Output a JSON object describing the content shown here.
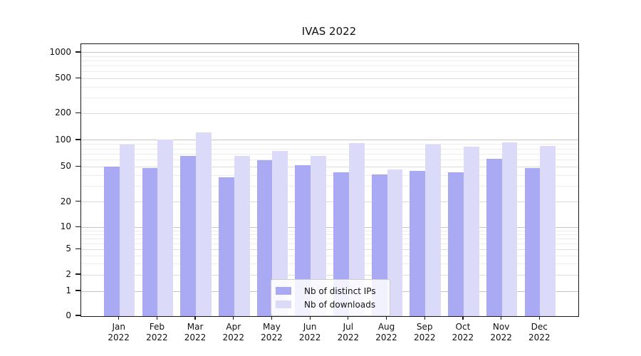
{
  "figure": {
    "title": "IVAS 2022"
  },
  "chart_data": {
    "type": "bar",
    "title": "IVAS 2022",
    "categories": [
      "Jan",
      "Feb",
      "Mar",
      "Apr",
      "May",
      "Jun",
      "Jul",
      "Aug",
      "Sep",
      "Oct",
      "Nov",
      "Dec"
    ],
    "category_year": "2022",
    "series": [
      {
        "name": "Nb of distinct IPs",
        "color": "#a9a9f4",
        "values": [
          50,
          48,
          66,
          38,
          59,
          52,
          43,
          41,
          45,
          43,
          62,
          48
        ]
      },
      {
        "name": "Nb of downloads",
        "color": "#dbdbf9",
        "values": [
          90,
          101,
          123,
          67,
          76,
          67,
          92,
          47,
          89,
          85,
          95,
          87
        ]
      }
    ],
    "y_axis": {
      "scale": "log-like with zero baseline",
      "ticks": [
        0,
        1,
        2,
        5,
        10,
        20,
        50,
        100,
        200,
        500,
        1000
      ],
      "tick_labels": [
        "0",
        "1",
        "2",
        "5",
        "10",
        "20",
        "50",
        "100",
        "200",
        "500",
        "1000"
      ],
      "range": [
        0,
        1000
      ],
      "minor_gridlines": [
        3,
        4,
        6,
        7,
        8,
        9,
        30,
        40,
        60,
        70,
        80,
        90,
        300,
        400,
        600,
        700,
        800,
        900
      ]
    },
    "xlabel": "",
    "ylabel": "",
    "grid": true,
    "legend": {
      "position": "lower center",
      "entries": [
        "Nb of distinct IPs",
        "Nb of downloads"
      ]
    },
    "colors": {
      "major_gridline": "#c5c5c5",
      "mid_gridline": "#dcdcdc",
      "minor_gridline": "#ececec",
      "spine": "#1a1a1a"
    }
  }
}
